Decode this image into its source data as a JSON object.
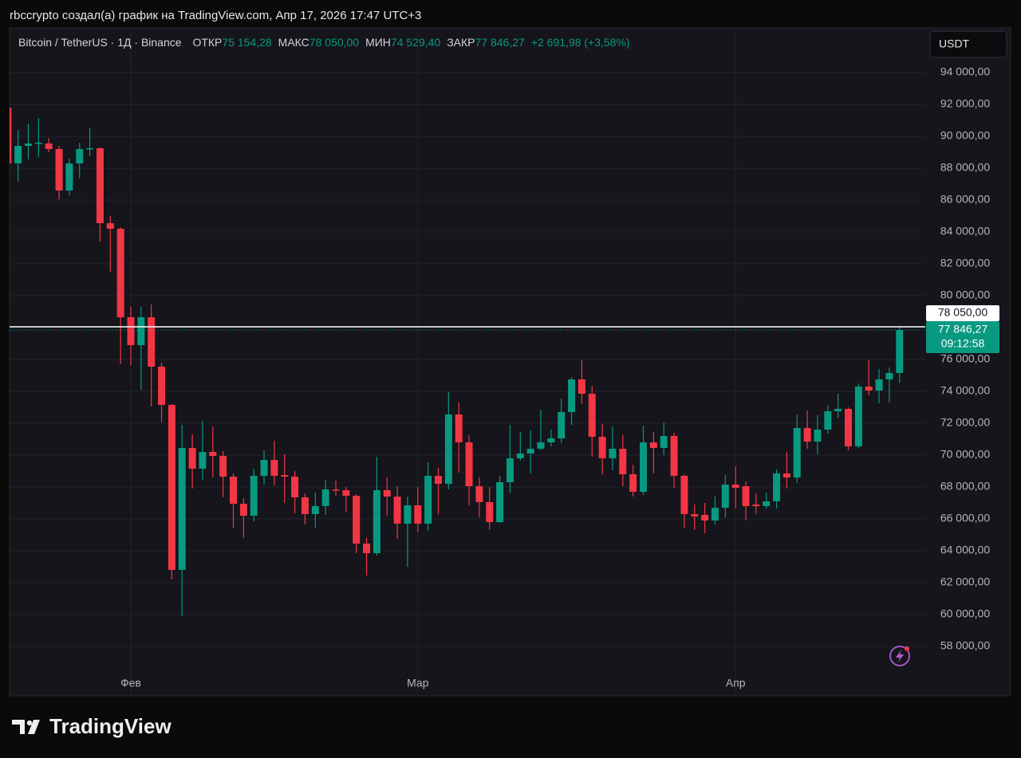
{
  "header": {
    "attribution": "rbccrypto создал(а) график на TradingView.com, Апр 17, 2026 17:47 UTC+3"
  },
  "footer": {
    "brand": "TradingView"
  },
  "toolbar": {
    "currency": "USDT"
  },
  "chart_data": {
    "type": "candlestick",
    "legend": {
      "symbol": "Bitcoin / TetherUS · 1Д · Binance",
      "items": [
        {
          "key": "ОТКР",
          "value": "75 154,28"
        },
        {
          "key": "МАКС",
          "value": "78 050,00"
        },
        {
          "key": "МИН",
          "value": "74 529,40"
        },
        {
          "key": "ЗАКР",
          "value": "77 846,27"
        }
      ],
      "change": "+2 691,98 (+3,58%)"
    },
    "categories": [
      null,
      null,
      null,
      null,
      null,
      null,
      null,
      null,
      null,
      null,
      null,
      null,
      "Фев",
      null,
      null,
      null,
      null,
      null,
      null,
      null,
      null,
      null,
      null,
      null,
      null,
      null,
      null,
      null,
      null,
      null,
      null,
      null,
      null,
      null,
      null,
      null,
      null,
      null,
      null,
      null,
      "Мар",
      null,
      null,
      null,
      null,
      null,
      null,
      null,
      null,
      null,
      null,
      null,
      null,
      null,
      null,
      null,
      null,
      null,
      null,
      null,
      null,
      null,
      null,
      null,
      null,
      null,
      null,
      null,
      null,
      null,
      null,
      "Апр",
      null,
      null,
      null,
      null,
      null,
      null,
      null,
      null,
      null,
      null,
      null,
      null,
      null,
      null,
      null,
      null
    ],
    "open": [
      91800,
      88300,
      89400,
      89550,
      89550,
      89200,
      86600,
      88300,
      89200,
      89250,
      84550,
      84200,
      78650,
      76900,
      78650,
      75550,
      73150,
      62800,
      70450,
      69150,
      70200,
      69950,
      68650,
      66950,
      66200,
      68700,
      69700,
      68750,
      68650,
      67350,
      66300,
      66800,
      67850,
      67800,
      67450,
      64450,
      63850,
      67800,
      67400,
      65700,
      66850,
      65700,
      68700,
      68200,
      72550,
      70800,
      68050,
      67050,
      65800,
      68300,
      69800,
      70100,
      70400,
      70800,
      71050,
      72700,
      74750,
      73850,
      71150,
      69800,
      70400,
      68800,
      67700,
      70800,
      70450,
      71200,
      68700,
      66300,
      66250,
      65900,
      66700,
      68150,
      68050,
      66900,
      66800,
      67100,
      68850,
      68600,
      71700,
      70850,
      71600,
      72750,
      72900,
      70550,
      74300,
      74050,
      74750,
      75154.28
    ],
    "high": [
      92550,
      90400,
      90800,
      91150,
      89900,
      89400,
      88600,
      89600,
      90550,
      89300,
      85000,
      84300,
      79300,
      79300,
      79450,
      75800,
      73200,
      71900,
      71300,
      72150,
      71800,
      70250,
      68850,
      67300,
      69150,
      70300,
      70900,
      70050,
      69000,
      67600,
      67650,
      68450,
      68400,
      68000,
      67550,
      64800,
      69900,
      68600,
      68050,
      67400,
      68000,
      69550,
      69200,
      73950,
      73300,
      71250,
      68600,
      68000,
      68700,
      71900,
      71450,
      71550,
      72850,
      71600,
      73550,
      74900,
      75950,
      74350,
      71950,
      71800,
      71250,
      69400,
      71850,
      71450,
      72050,
      71400,
      68800,
      66900,
      67000,
      67400,
      68750,
      69300,
      68350,
      67600,
      67650,
      69100,
      70200,
      72550,
      72800,
      72500,
      73150,
      73850,
      73000,
      74500,
      75950,
      75400,
      75500,
      78050
    ],
    "low": [
      88000,
      87150,
      88550,
      88700,
      89000,
      86050,
      86300,
      87350,
      88750,
      83400,
      81500,
      75700,
      75650,
      74100,
      73050,
      72050,
      62200,
      59900,
      67900,
      68450,
      68600,
      67350,
      65450,
      64800,
      65850,
      68150,
      68100,
      67000,
      66350,
      65650,
      65450,
      66250,
      67450,
      66450,
      63850,
      62450,
      63700,
      66200,
      64750,
      63000,
      65150,
      65250,
      66300,
      67850,
      68900,
      66850,
      66100,
      65300,
      65750,
      67650,
      69650,
      68850,
      70300,
      70550,
      70750,
      71900,
      73200,
      69900,
      68800,
      69050,
      68050,
      67400,
      67500,
      68850,
      70000,
      67950,
      65450,
      65300,
      65100,
      65650,
      66100,
      66650,
      65900,
      66300,
      66650,
      66650,
      67900,
      68250,
      70400,
      70050,
      71350,
      72350,
      70300,
      70450,
      73750,
      73250,
      73300,
      74529.4
    ],
    "close": [
      88300,
      89400,
      89550,
      89600,
      89200,
      86600,
      88300,
      89200,
      89250,
      84550,
      84200,
      78650,
      76900,
      78650,
      75550,
      73150,
      62800,
      70450,
      69150,
      70200,
      69950,
      68650,
      66950,
      66200,
      68700,
      69700,
      68700,
      68650,
      67350,
      66300,
      66800,
      67850,
      67800,
      67450,
      64450,
      63850,
      67800,
      67400,
      65700,
      66850,
      65700,
      68700,
      68200,
      72550,
      70800,
      68050,
      67050,
      65800,
      68300,
      69800,
      70100,
      70400,
      70800,
      71050,
      72700,
      74750,
      73850,
      71150,
      69800,
      70400,
      68800,
      67700,
      70800,
      70450,
      71200,
      68700,
      66300,
      66150,
      65900,
      66700,
      68150,
      67950,
      66800,
      66800,
      67100,
      68850,
      68600,
      71700,
      70850,
      71600,
      72750,
      72900,
      70550,
      74300,
      74050,
      74750,
      75150,
      77846.27
    ],
    "up_color": "#089981",
    "down_color": "#f23645",
    "ylim": [
      54900,
      96800
    ],
    "yticks": [
      {
        "value": 94000,
        "label": "94 000,00"
      },
      {
        "value": 92000,
        "label": "92 000,00"
      },
      {
        "value": 90000,
        "label": "90 000,00"
      },
      {
        "value": 88000,
        "label": "88 000,00"
      },
      {
        "value": 86000,
        "label": "86 000,00"
      },
      {
        "value": 84000,
        "label": "84 000,00"
      },
      {
        "value": 82000,
        "label": "82 000,00"
      },
      {
        "value": 80000,
        "label": "80 000,00"
      },
      {
        "value": 78000,
        "label": "78 000,00"
      },
      {
        "value": 76000,
        "label": "76 000,00"
      },
      {
        "value": 74000,
        "label": "74 000,00"
      },
      {
        "value": 72000,
        "label": "72 000,00"
      },
      {
        "value": 70000,
        "label": "70 000,00"
      },
      {
        "value": 68000,
        "label": "68 000,00"
      },
      {
        "value": 66000,
        "label": "66 000,00"
      },
      {
        "value": 64000,
        "label": "64 000,00"
      },
      {
        "value": 62000,
        "label": "62 000,00"
      },
      {
        "value": 60000,
        "label": "60 000,00"
      },
      {
        "value": 58000,
        "label": "58 000,00"
      }
    ],
    "grid": true,
    "high_line": {
      "value": 78050,
      "label": "78 050,00"
    },
    "last_price": {
      "value": 77846.27,
      "label": "77 846,27",
      "countdown": "09:12:58"
    }
  }
}
